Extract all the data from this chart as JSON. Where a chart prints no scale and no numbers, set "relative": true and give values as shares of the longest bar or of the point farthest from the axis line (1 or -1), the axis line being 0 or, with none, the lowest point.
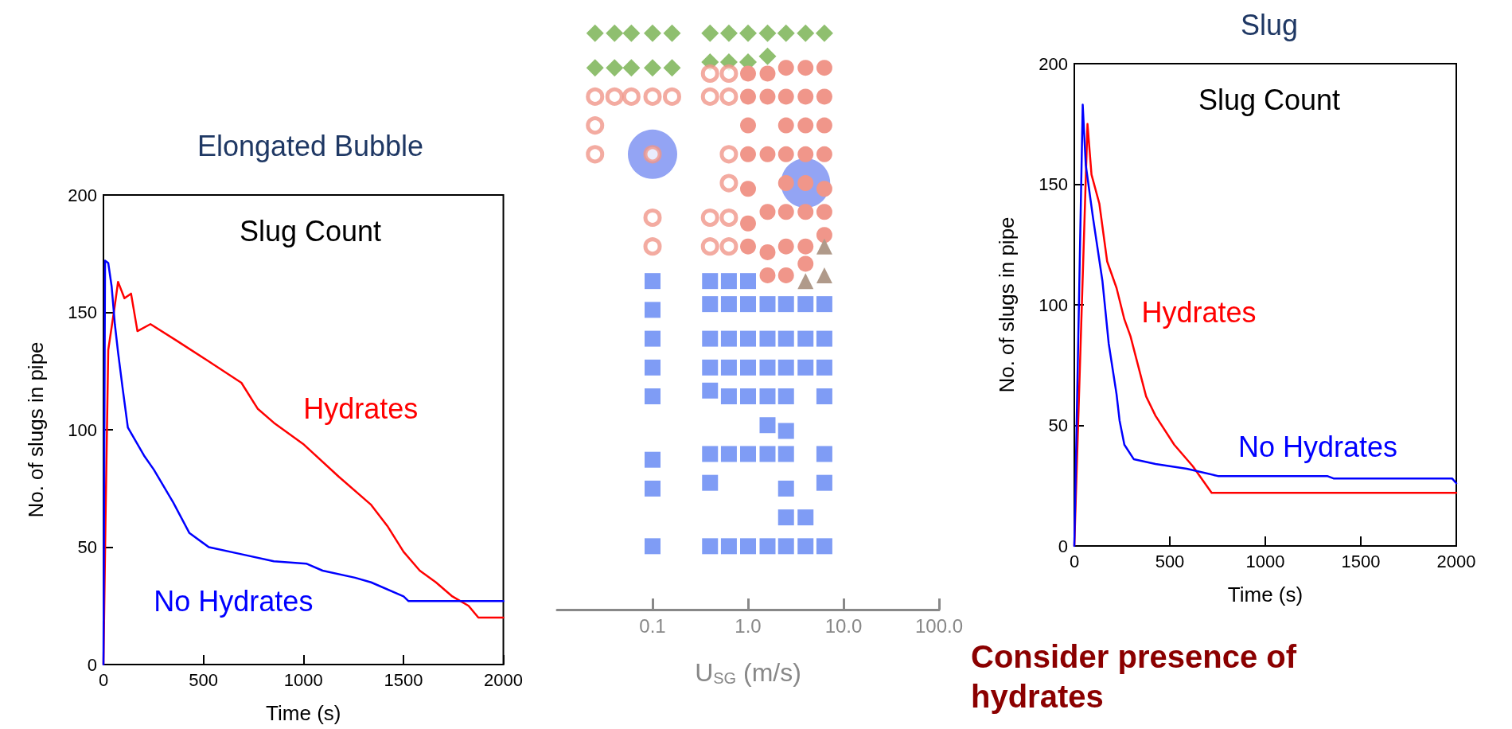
{
  "chart_data": [
    {
      "type": "line",
      "title": "Slug Count",
      "subtitle": "Elongated Bubble",
      "xlabel": "Time (s)",
      "ylabel": "No. of slugs in pipe",
      "xlim": [
        0,
        2000
      ],
      "ylim": [
        0,
        200
      ],
      "xticks": [
        0,
        500,
        1000,
        1500,
        2000
      ],
      "yticks": [
        0,
        50,
        100,
        150,
        200
      ],
      "grid": false,
      "marker": "none",
      "line_style": "solid",
      "series": [
        {
          "name": "Hydrates",
          "color": "#ff0000",
          "x": [
            0,
            10,
            24,
            57,
            73,
            105,
            138,
            170,
            235,
            365,
            511,
            690,
            771,
            852,
            998,
            1177,
            1339,
            1420,
            1501,
            1582,
            1663,
            1745,
            1826,
            1875,
            2000
          ],
          "values": [
            0,
            60,
            134,
            153,
            163,
            156,
            158,
            142,
            145,
            138,
            130,
            120,
            109,
            103,
            94,
            80,
            68,
            59,
            48,
            40,
            35,
            29,
            25,
            20,
            20
          ]
        },
        {
          "name": "No Hydrates",
          "color": "#0000ff",
          "x": [
            0,
            8,
            24,
            41,
            57,
            73,
            97,
            122,
            203,
            252,
            349,
            430,
            527,
            690,
            852,
            1014,
            1096,
            1258,
            1339,
            1501,
            1526,
            2000
          ],
          "values": [
            0,
            172,
            171,
            161,
            145,
            133,
            117,
            101,
            89,
            83,
            69,
            56,
            50,
            47,
            44,
            43,
            40,
            37,
            35,
            29,
            27,
            27
          ]
        }
      ]
    },
    {
      "type": "scatter",
      "xlabel": "U$_{SG}$ (m/s)",
      "log": "x",
      "relative": true,
      "xlim": [
        0.01,
        100
      ],
      "xticks": [
        {
          "value": 0.1,
          "label": "0.1"
        },
        {
          "value": 1,
          "label": "1.0"
        },
        {
          "value": 10,
          "label": "10.0"
        },
        {
          "value": 100,
          "label": "100.0"
        }
      ],
      "grid": false,
      "series": [
        {
          "color": "#8fbf6f",
          "marker": "diamond",
          "x": [
            0.025,
            0.04,
            0.06,
            0.1,
            0.16,
            0.4,
            0.63,
            1,
            1.6,
            2.5,
            4,
            6.3,
            0.025,
            0.04,
            0.06,
            0.1,
            0.16,
            0.4,
            0.63,
            1,
            1.6
          ],
          "values": [
            1,
            1,
            1,
            1,
            1,
            1,
            1,
            1,
            1,
            1,
            1,
            1,
            0.94,
            0.94,
            0.94,
            0.94,
            0.94,
            0.95,
            0.95,
            0.95,
            0.96
          ]
        },
        {
          "color": "#f0968a",
          "marker": "open circle",
          "x": [
            0.4,
            0.63,
            0.025,
            0.04,
            0.06,
            0.1,
            0.16,
            0.4,
            0.63,
            0.025,
            0.025,
            0.1,
            0.63,
            0.63,
            0.1,
            0.4,
            0.63,
            0.1,
            0.4,
            0.63
          ],
          "values": [
            0.93,
            0.93,
            0.89,
            0.89,
            0.89,
            0.89,
            0.89,
            0.89,
            0.89,
            0.84,
            0.79,
            0.79,
            0.79,
            0.74,
            0.68,
            0.68,
            0.68,
            0.63,
            0.63,
            0.63
          ]
        },
        {
          "color": "#f0968a",
          "marker": "circle",
          "x": [
            1,
            1.6,
            2.5,
            4,
            6.3,
            1,
            1.6,
            2.5,
            4,
            6.3,
            1,
            2.5,
            4,
            6.3,
            1,
            1.6,
            2.5,
            4,
            6.3,
            1,
            2.5,
            4,
            6.3,
            1.6,
            2.5,
            4,
            6.3,
            1,
            1,
            1.6,
            2.5,
            4,
            6.3,
            4,
            1.6,
            2.5
          ],
          "values": [
            0.93,
            0.93,
            0.94,
            0.94,
            0.94,
            0.89,
            0.89,
            0.89,
            0.89,
            0.89,
            0.84,
            0.84,
            0.84,
            0.84,
            0.79,
            0.79,
            0.79,
            0.79,
            0.79,
            0.73,
            0.74,
            0.74,
            0.73,
            0.69,
            0.69,
            0.69,
            0.69,
            0.67,
            0.63,
            0.62,
            0.63,
            0.63,
            0.65,
            0.6,
            0.58,
            0.58
          ]
        },
        {
          "color": "#b09a8a",
          "marker": "triangle",
          "x": [
            6.3,
            4,
            6.3
          ],
          "values": [
            0.63,
            0.57,
            0.58
          ]
        },
        {
          "color": "#7f9cf5",
          "marker": "square",
          "x": [
            0.1,
            0.1,
            0.1,
            0.1,
            0.1,
            0.1,
            0.1,
            0.1,
            0.4,
            0.4,
            0.4,
            0.4,
            0.4,
            0.4,
            0.4,
            0.4,
            0.63,
            0.63,
            0.63,
            0.63,
            0.63,
            0.63,
            0.63,
            1,
            1,
            1,
            1,
            1,
            1,
            1,
            1.6,
            1.6,
            1.6,
            1.6,
            1.6,
            1.6,
            1.6,
            2.5,
            2.5,
            2.5,
            2.5,
            2.5,
            2.5,
            2.5,
            2.5,
            2.5,
            4,
            4,
            4,
            4,
            4,
            6.3,
            6.3,
            6.3,
            6.3,
            6.3,
            6.3,
            6.3
          ],
          "values": [
            0.57,
            0.52,
            0.47,
            0.42,
            0.37,
            0.26,
            0.21,
            0.11,
            0.57,
            0.53,
            0.47,
            0.42,
            0.38,
            0.27,
            0.22,
            0.11,
            0.57,
            0.53,
            0.47,
            0.42,
            0.37,
            0.27,
            0.11,
            0.57,
            0.53,
            0.47,
            0.42,
            0.37,
            0.27,
            0.11,
            0.53,
            0.47,
            0.42,
            0.37,
            0.32,
            0.27,
            0.11,
            0.53,
            0.47,
            0.42,
            0.37,
            0.31,
            0.27,
            0.21,
            0.16,
            0.11,
            0.53,
            0.47,
            0.42,
            0.16,
            0.11,
            0.53,
            0.47,
            0.42,
            0.37,
            0.27,
            0.22,
            0.11
          ]
        },
        {
          "type": "bubble",
          "color": "#6f86f0",
          "marker": "circle",
          "x": [
            0.1,
            4
          ],
          "values": [
            0.79,
            0.74
          ],
          "sizes": [
            1,
            1
          ]
        }
      ]
    },
    {
      "type": "line",
      "title": "Slug Count",
      "subtitle": "Slug",
      "xlabel": "Time (s)",
      "ylabel": "No. of slugs in pipe",
      "xlim": [
        0,
        2000
      ],
      "ylim": [
        0,
        200
      ],
      "xticks": [
        0,
        500,
        1000,
        1500,
        2000
      ],
      "yticks": [
        0,
        50,
        100,
        150,
        200
      ],
      "grid": false,
      "marker": "none",
      "line_style": "solid",
      "annotations": [
        "Consider presence of hydrates"
      ],
      "series": [
        {
          "name": "Hydrates",
          "color": "#ff0000",
          "x": [
            0,
            69,
            90,
            131,
            172,
            221,
            262,
            294,
            376,
            425,
            523,
            621,
            719,
            2000
          ],
          "values": [
            0,
            175,
            154,
            142,
            118,
            107,
            94,
            87,
            62,
            54,
            42,
            33,
            22,
            22
          ]
        },
        {
          "name": "No Hydrates",
          "color": "#0000ff",
          "x": [
            0,
            44,
            60,
            98,
            147,
            180,
            221,
            237,
            262,
            311,
            425,
            589,
            752,
            1324,
            1357,
            1978,
            2000
          ],
          "values": [
            0,
            183,
            158,
            136,
            110,
            84,
            63,
            52,
            42,
            36,
            34,
            32,
            29,
            29,
            28,
            28,
            26
          ]
        }
      ]
    }
  ]
}
